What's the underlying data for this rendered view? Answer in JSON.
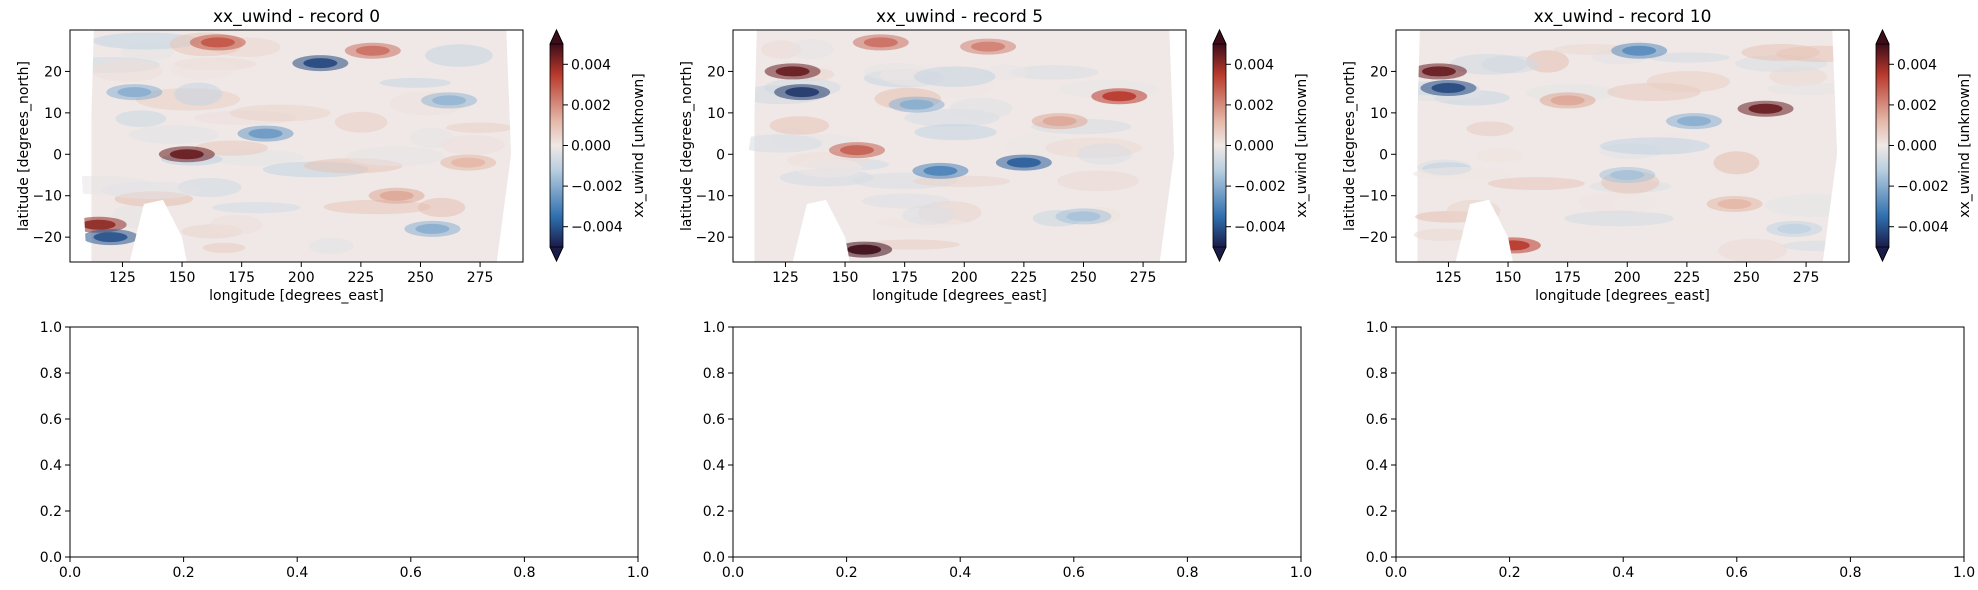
{
  "colors": {
    "cmap_neg_max": "#1a1c4a",
    "cmap_neg_mid": "#2f6fae",
    "cmap_neg_light": "#b9cfe0",
    "cmap_zero": "#efe8e6",
    "cmap_pos_light": "#e4b8a8",
    "cmap_pos_mid": "#b8392c",
    "cmap_pos_max": "#3e0d1a",
    "axes_frame": "#000000"
  },
  "chart_data": [
    {
      "type": "heatmap",
      "title": "xx_uwind - record 0",
      "xlabel": "longitude [degrees_east]",
      "ylabel": "latitude [degrees_north]",
      "xlim": [
        103,
        293
      ],
      "ylim": [
        -26,
        30
      ],
      "xticks": [
        125,
        150,
        175,
        200,
        225,
        250,
        275
      ],
      "xtick_labels": [
        "125",
        "150",
        "175",
        "200",
        "225",
        "250",
        "275"
      ],
      "yticks": [
        -20,
        -10,
        0,
        10,
        20
      ],
      "ytick_labels": [
        "−20",
        "−10",
        "0",
        "10",
        "20"
      ],
      "colorbar": {
        "label": "xx_uwind [unknown]",
        "vmin": -0.005,
        "vmax": 0.005,
        "extend": "both",
        "ticks": [
          -0.004,
          -0.002,
          0.0,
          0.002,
          0.004
        ],
        "tick_labels": [
          "−0.004",
          "−0.002",
          "0.000",
          "0.002",
          "0.004"
        ]
      },
      "grid": false,
      "blobs": [
        {
          "lon": 152,
          "lat": 0,
          "value": 0.0045
        },
        {
          "lon": 208,
          "lat": 22,
          "value": -0.0042
        },
        {
          "lon": 165,
          "lat": 27,
          "value": 0.003
        },
        {
          "lon": 115,
          "lat": -17,
          "value": 0.004
        },
        {
          "lon": 120,
          "lat": -20,
          "value": -0.004
        },
        {
          "lon": 185,
          "lat": 5,
          "value": -0.0025
        },
        {
          "lon": 230,
          "lat": 25,
          "value": 0.0025
        },
        {
          "lon": 255,
          "lat": -18,
          "value": -0.002
        },
        {
          "lon": 262,
          "lat": 13,
          "value": -0.0018
        },
        {
          "lon": 130,
          "lat": 15,
          "value": -0.002
        },
        {
          "lon": 240,
          "lat": -10,
          "value": 0.0015
        },
        {
          "lon": 270,
          "lat": -2,
          "value": 0.0012
        }
      ]
    },
    {
      "type": "heatmap",
      "title": "xx_uwind - record 5",
      "xlabel": "longitude [degrees_east]",
      "ylabel": "latitude [degrees_north]",
      "xlim": [
        103,
        293
      ],
      "ylim": [
        -26,
        30
      ],
      "xticks": [
        125,
        150,
        175,
        200,
        225,
        250,
        275
      ],
      "xtick_labels": [
        "125",
        "150",
        "175",
        "200",
        "225",
        "250",
        "275"
      ],
      "yticks": [
        -20,
        -10,
        0,
        10,
        20
      ],
      "ytick_labels": [
        "−20",
        "−10",
        "0",
        "10",
        "20"
      ],
      "colorbar": {
        "label": "xx_uwind [unknown]",
        "vmin": -0.005,
        "vmax": 0.005,
        "extend": "both",
        "ticks": [
          -0.004,
          -0.002,
          0.0,
          0.002,
          0.004
        ],
        "tick_labels": [
          "−0.004",
          "−0.002",
          "0.000",
          "0.002",
          "0.004"
        ]
      },
      "grid": false,
      "blobs": [
        {
          "lon": 128,
          "lat": 20,
          "value": 0.0045
        },
        {
          "lon": 132,
          "lat": 15,
          "value": -0.0045
        },
        {
          "lon": 158,
          "lat": -23,
          "value": 0.005
        },
        {
          "lon": 225,
          "lat": -2,
          "value": -0.0038
        },
        {
          "lon": 190,
          "lat": -4,
          "value": -0.003
        },
        {
          "lon": 155,
          "lat": 1,
          "value": 0.0028
        },
        {
          "lon": 165,
          "lat": 27,
          "value": 0.0025
        },
        {
          "lon": 210,
          "lat": 26,
          "value": 0.0022
        },
        {
          "lon": 265,
          "lat": 14,
          "value": 0.0035
        },
        {
          "lon": 250,
          "lat": -15,
          "value": -0.0015
        },
        {
          "lon": 180,
          "lat": 12,
          "value": -0.002
        },
        {
          "lon": 240,
          "lat": 8,
          "value": 0.0015
        }
      ]
    },
    {
      "type": "heatmap",
      "title": "xx_uwind - record 10",
      "xlabel": "longitude [degrees_east]",
      "ylabel": "latitude [degrees_north]",
      "xlim": [
        103,
        293
      ],
      "ylim": [
        -26,
        30
      ],
      "xticks": [
        125,
        150,
        175,
        200,
        225,
        250,
        275
      ],
      "xtick_labels": [
        "125",
        "150",
        "175",
        "200",
        "225",
        "250",
        "275"
      ],
      "yticks": [
        -20,
        -10,
        0,
        10,
        20
      ],
      "ytick_labels": [
        "−20",
        "−10",
        "0",
        "10",
        "20"
      ],
      "colorbar": {
        "label": "xx_uwind [unknown]",
        "vmin": -0.005,
        "vmax": 0.005,
        "extend": "both",
        "ticks": [
          -0.004,
          -0.002,
          0.0,
          0.002,
          0.004
        ],
        "tick_labels": [
          "−0.004",
          "−0.002",
          "0.000",
          "0.002",
          "0.004"
        ]
      },
      "grid": false,
      "blobs": [
        {
          "lon": 121,
          "lat": 20,
          "value": 0.0045
        },
        {
          "lon": 125,
          "lat": 16,
          "value": -0.0042
        },
        {
          "lon": 258,
          "lat": 11,
          "value": 0.0045
        },
        {
          "lon": 205,
          "lat": 25,
          "value": -0.0028
        },
        {
          "lon": 228,
          "lat": 8,
          "value": -0.002
        },
        {
          "lon": 152,
          "lat": -22,
          "value": 0.0035
        },
        {
          "lon": 175,
          "lat": 13,
          "value": 0.0015
        },
        {
          "lon": 200,
          "lat": -5,
          "value": -0.0015
        },
        {
          "lon": 245,
          "lat": -12,
          "value": 0.0012
        },
        {
          "lon": 270,
          "lat": -18,
          "value": -0.001
        }
      ]
    },
    {
      "type": "scatter",
      "title": "",
      "xlabel": "",
      "ylabel": "",
      "xlim": [
        0,
        1
      ],
      "ylim": [
        0,
        1
      ],
      "xticks": [
        0,
        0.2,
        0.4,
        0.6,
        0.8,
        1
      ],
      "xtick_labels": [
        "0.0",
        "0.2",
        "0.4",
        "0.6",
        "0.8",
        "1.0"
      ],
      "yticks": [
        0,
        0.2,
        0.4,
        0.6,
        0.8,
        1
      ],
      "ytick_labels": [
        "0.0",
        "0.2",
        "0.4",
        "0.6",
        "0.8",
        "1.0"
      ],
      "series": []
    },
    {
      "type": "scatter",
      "title": "",
      "xlabel": "",
      "ylabel": "",
      "xlim": [
        0,
        1
      ],
      "ylim": [
        0,
        1
      ],
      "xticks": [
        0,
        0.2,
        0.4,
        0.6,
        0.8,
        1
      ],
      "xtick_labels": [
        "0.0",
        "0.2",
        "0.4",
        "0.6",
        "0.8",
        "1.0"
      ],
      "yticks": [
        0,
        0.2,
        0.4,
        0.6,
        0.8,
        1
      ],
      "ytick_labels": [
        "0.0",
        "0.2",
        "0.4",
        "0.6",
        "0.8",
        "1.0"
      ],
      "series": []
    },
    {
      "type": "scatter",
      "title": "",
      "xlabel": "",
      "ylabel": "",
      "xlim": [
        0,
        1
      ],
      "ylim": [
        0,
        1
      ],
      "xticks": [
        0,
        0.2,
        0.4,
        0.6,
        0.8,
        1
      ],
      "xtick_labels": [
        "0.0",
        "0.2",
        "0.4",
        "0.6",
        "0.8",
        "1.0"
      ],
      "yticks": [
        0,
        0.2,
        0.4,
        0.6,
        0.8,
        1
      ],
      "ytick_labels": [
        "0.0",
        "0.2",
        "0.4",
        "0.6",
        "0.8",
        "1.0"
      ],
      "series": []
    }
  ]
}
